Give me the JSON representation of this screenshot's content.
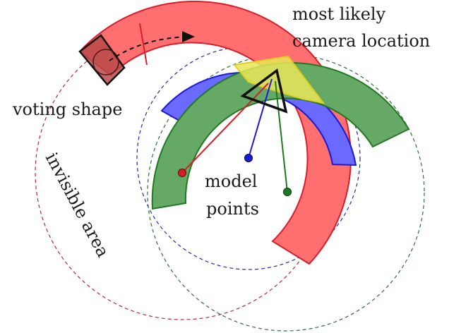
{
  "labels": {
    "camera_line1": "most likely",
    "camera_line2": "camera location",
    "voting_shape": "voting shape",
    "invisible_area": "invisible area",
    "model_line1": "model",
    "model_line2": "points"
  },
  "colors": {
    "red_fill": "#ff6f6f",
    "red_stroke": "#d81e2a",
    "blue_fill": "#6a6aff",
    "blue_stroke": "#1a1ad6",
    "green_fill": "#66a866",
    "green_stroke": "#1f7a1f",
    "yellow_fill": "#e8e85a",
    "yellow_stroke": "#e0d020",
    "dashed_red": "#b2283c",
    "dashed_blue": "#2828a8",
    "dashed_green": "#2f6e3a",
    "camera_stroke": "#111111",
    "voting_cell_fill": "#b84a4a",
    "arrow_stroke": "#111111"
  },
  "icons": {
    "camera": "camera-triangle-icon",
    "arrow": "dashed-arrow-icon"
  }
}
